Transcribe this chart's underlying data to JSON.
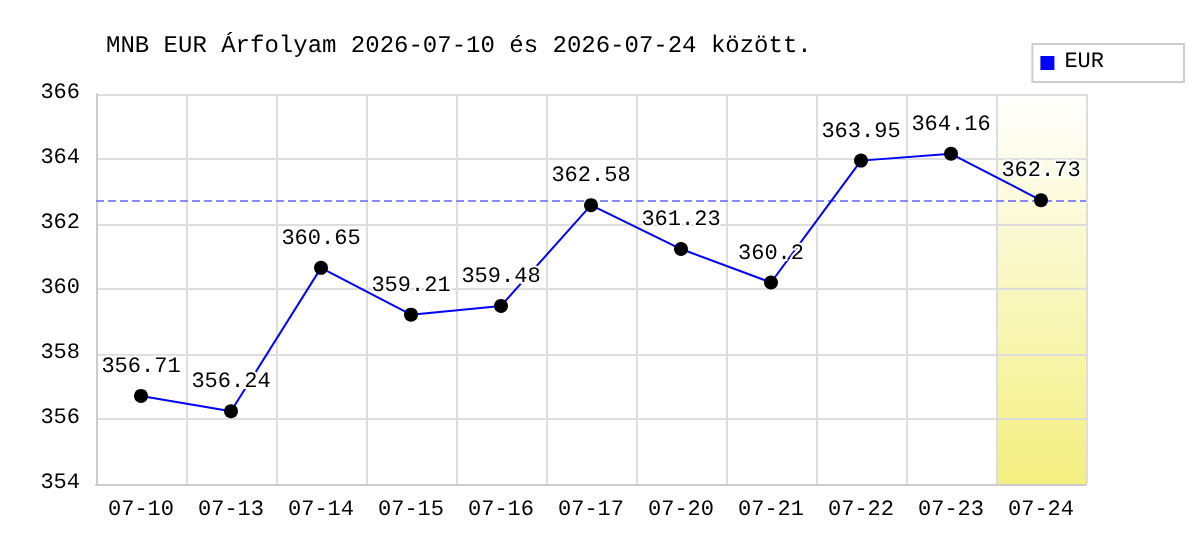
{
  "chart_data": {
    "type": "line",
    "title": "MNB EUR Árfolyam 2026-07-10 és 2026-07-24 között.",
    "categories": [
      "07-10",
      "07-13",
      "07-14",
      "07-15",
      "07-16",
      "07-17",
      "07-20",
      "07-21",
      "07-22",
      "07-23",
      "07-24"
    ],
    "series": [
      {
        "name": "EUR",
        "color": "#0000ff",
        "values": [
          356.71,
          356.24,
          360.65,
          359.21,
          359.48,
          362.58,
          361.23,
          360.2,
          363.95,
          364.16,
          362.73
        ]
      }
    ],
    "ylim": [
      354,
      366
    ],
    "yticks": [
      354,
      356,
      358,
      360,
      362,
      364,
      366
    ],
    "ref_lines": [
      {
        "axis": "y",
        "value": 362.73,
        "color": "#8888ff",
        "line_style": "dashed"
      }
    ],
    "bands": [
      {
        "axis": "x",
        "from": "07-24",
        "to": "07-24",
        "color": "#f3ef80"
      }
    ],
    "data_labels": true,
    "grid": true,
    "legend": "top right",
    "marker": "circle",
    "line_style": "solid"
  }
}
